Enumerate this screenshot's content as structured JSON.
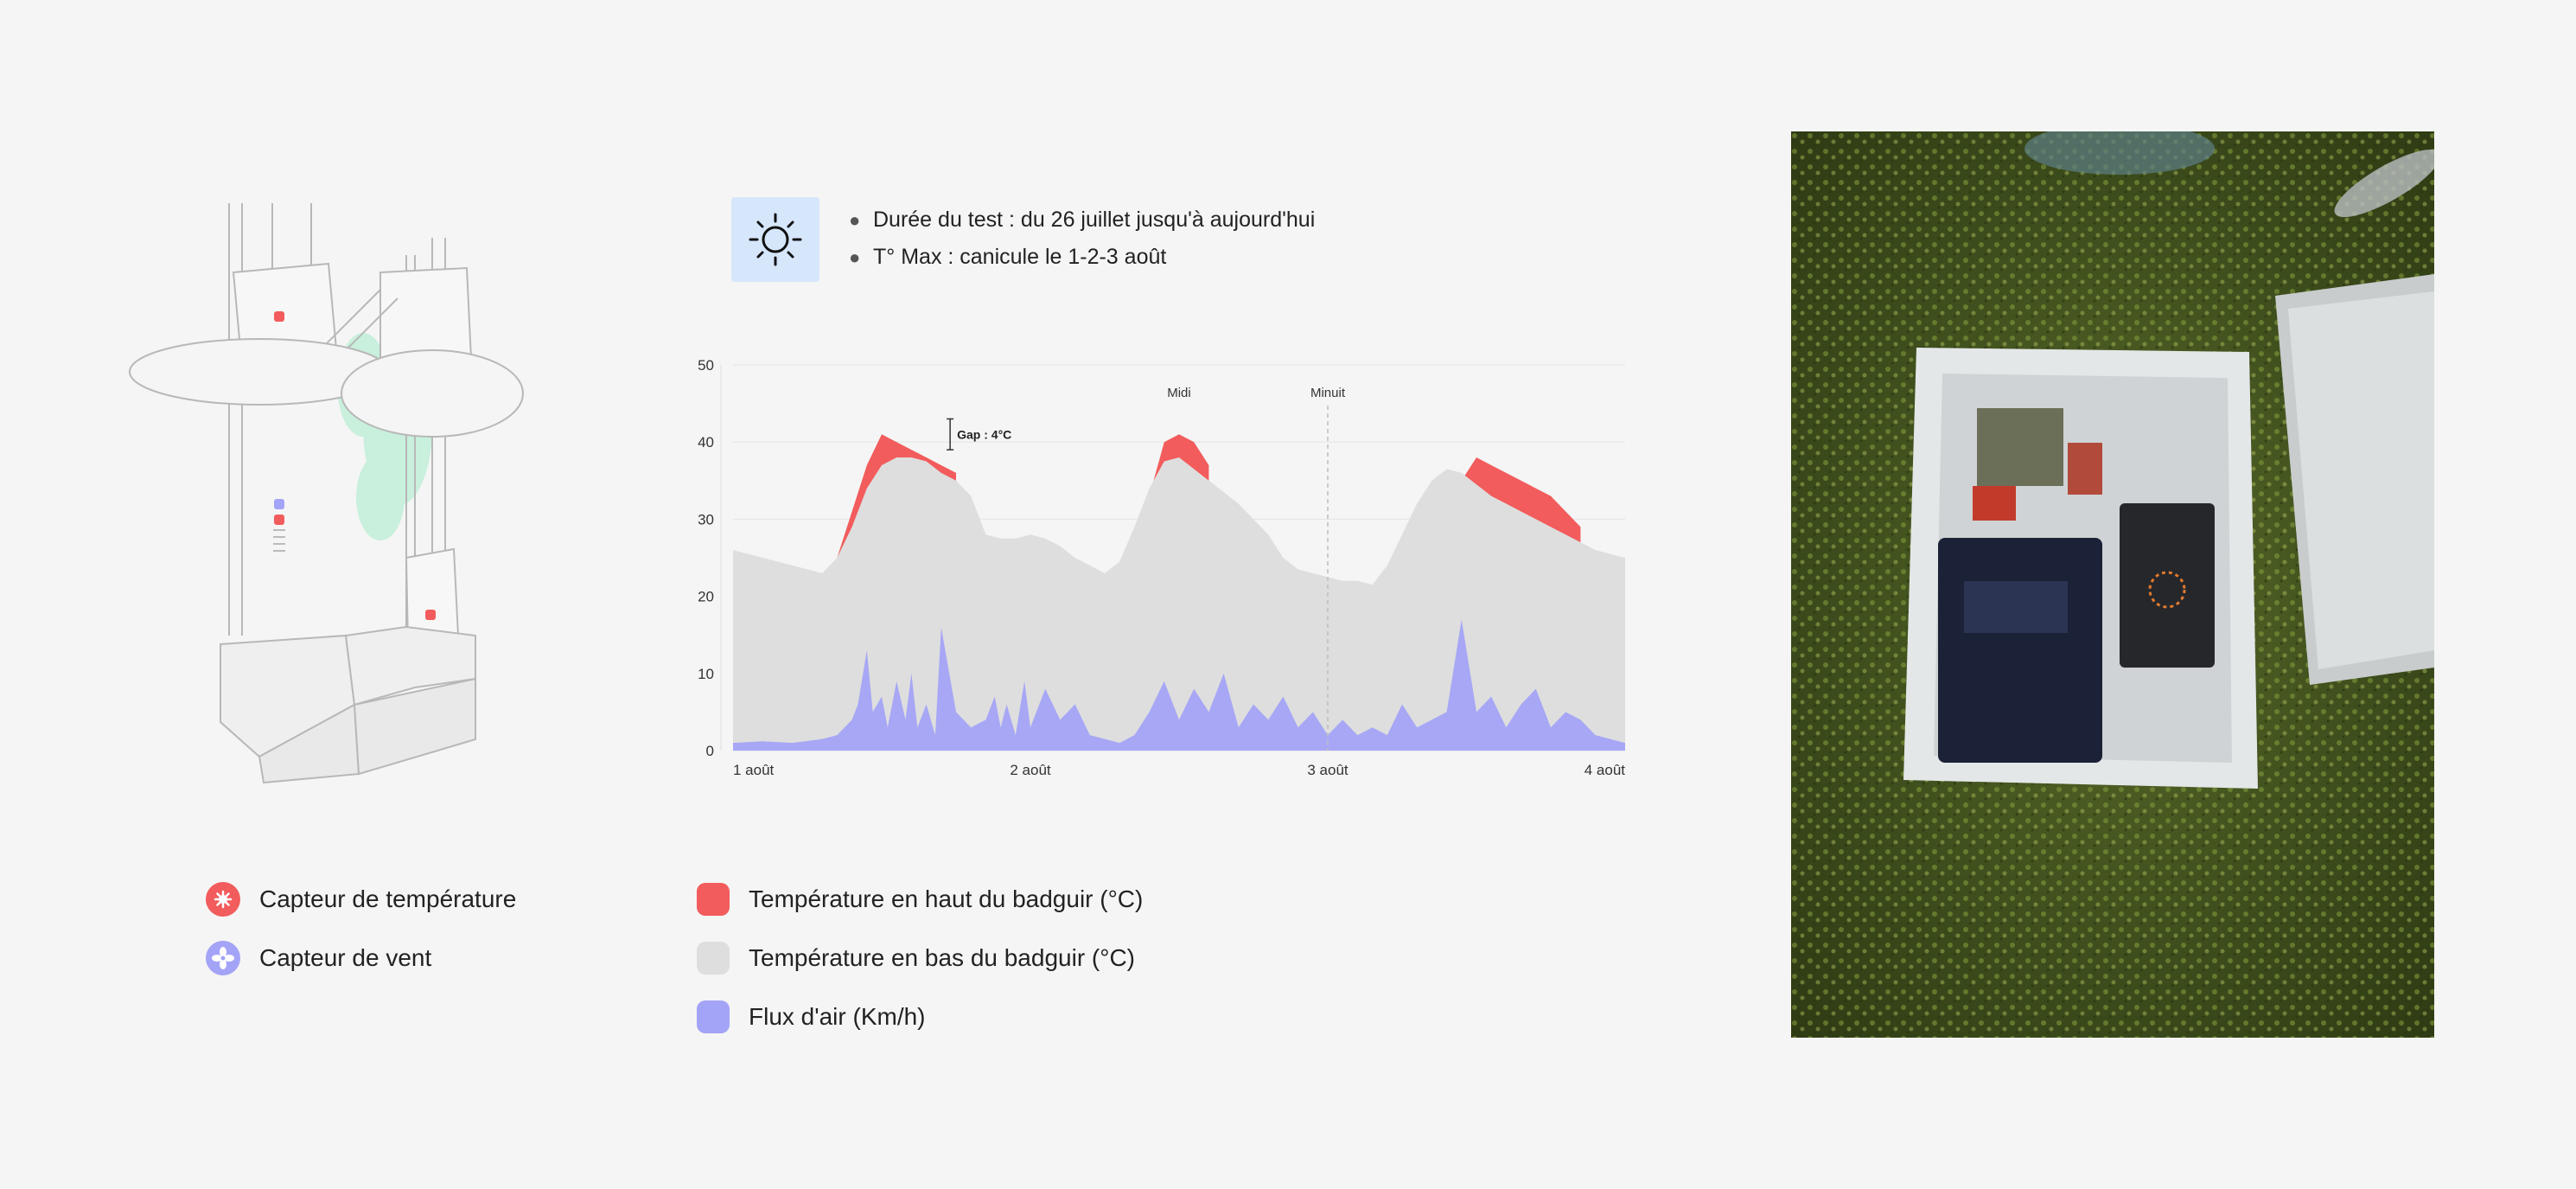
{
  "info": {
    "icon": "sun-icon",
    "bullet_icon": "",
    "lines": [
      "Durée du test : du 26 juillet jusqu'à aujourd'hui",
      "T° Max : canicule le 1-2-3 août"
    ]
  },
  "sensor_legend": [
    {
      "label": "Capteur de température",
      "icon": "thermometer-burst-icon",
      "color": "#f25c5c"
    },
    {
      "label": "Capteur de vent",
      "icon": "fan-icon",
      "color": "#a3a3f7"
    }
  ],
  "series_legend": [
    {
      "label": "Température en haut du badguir (°C)",
      "color": "#f25c5c"
    },
    {
      "label": "Température en bas du badguir (°C)",
      "color": "#dedede"
    },
    {
      "label": "Flux d'air (Km/h)",
      "color": "#a3a3f7"
    }
  ],
  "chart_data": {
    "type": "area",
    "title": "",
    "xlabel": "",
    "ylabel": "",
    "ylim": [
      0,
      50
    ],
    "yticks": [
      0,
      10,
      20,
      30,
      40,
      50
    ],
    "xlim": [
      0,
      3
    ],
    "xticks": [
      {
        "value": 0,
        "label": "1 août"
      },
      {
        "value": 1,
        "label": "2 août"
      },
      {
        "value": 2,
        "label": "3 août"
      },
      {
        "value": 3,
        "label": "4 août"
      }
    ],
    "grid": true,
    "annotations": [
      {
        "label": "Midi",
        "x": 1.5
      },
      {
        "label": "Minuit",
        "x": 2.0,
        "dashed_line": true
      },
      {
        "label": "Gap : 4°C",
        "x": 0.73,
        "y_from": 39,
        "y_to": 43
      }
    ],
    "series": [
      {
        "name": "Température en haut du badguir (°C)",
        "color": "#f25c5c",
        "x": [
          0.35,
          0.4,
          0.45,
          0.5,
          0.55,
          0.6,
          0.65,
          0.7,
          0.75,
          1.35,
          1.4,
          1.45,
          1.5,
          1.55,
          1.6,
          2.35,
          2.4,
          2.45,
          2.5,
          2.55,
          2.6,
          2.65,
          2.7,
          2.75,
          2.8,
          2.85
        ],
        "values": [
          25,
          31,
          37,
          41,
          40,
          39,
          38,
          37,
          36,
          25,
          33,
          40,
          41,
          40,
          37,
          24,
          30,
          35,
          38,
          37,
          36,
          35,
          34,
          33,
          31,
          29
        ]
      },
      {
        "name": "Température en bas du badguir (°C)",
        "color": "#dedede",
        "x": [
          0.0,
          0.05,
          0.1,
          0.15,
          0.2,
          0.25,
          0.3,
          0.35,
          0.4,
          0.45,
          0.5,
          0.55,
          0.6,
          0.65,
          0.7,
          0.75,
          0.8,
          0.85,
          0.9,
          0.95,
          1.0,
          1.05,
          1.1,
          1.15,
          1.2,
          1.25,
          1.3,
          1.35,
          1.4,
          1.45,
          1.5,
          1.55,
          1.6,
          1.65,
          1.7,
          1.75,
          1.8,
          1.85,
          1.9,
          1.95,
          2.0,
          2.05,
          2.1,
          2.15,
          2.2,
          2.25,
          2.3,
          2.35,
          2.4,
          2.45,
          2.5,
          2.55,
          2.6,
          2.65,
          2.7,
          2.75,
          2.8,
          2.85,
          2.9,
          2.95,
          3.0
        ],
        "values": [
          26,
          25.5,
          25,
          24.5,
          24,
          23.5,
          23,
          25,
          29,
          34,
          37,
          38,
          38,
          37.5,
          36,
          35,
          33,
          28,
          27.5,
          27.5,
          28,
          27.5,
          26.5,
          25,
          24,
          23,
          24.5,
          29,
          34,
          37.5,
          38,
          36.5,
          35,
          33.5,
          32,
          30,
          28,
          25,
          23.5,
          23,
          22.5,
          22,
          22,
          21.5,
          24,
          28,
          32,
          35,
          36.5,
          36,
          34.5,
          33,
          32,
          31,
          30,
          29,
          28,
          27,
          26,
          25.5,
          25
        ]
      },
      {
        "name": "Flux d'air (Km/h)",
        "color": "#a3a3f7",
        "x": [
          0.0,
          0.1,
          0.2,
          0.3,
          0.35,
          0.4,
          0.42,
          0.45,
          0.47,
          0.5,
          0.52,
          0.55,
          0.58,
          0.6,
          0.62,
          0.65,
          0.68,
          0.7,
          0.75,
          0.8,
          0.85,
          0.88,
          0.9,
          0.92,
          0.95,
          0.98,
          1.0,
          1.05,
          1.1,
          1.15,
          1.2,
          1.25,
          1.3,
          1.35,
          1.4,
          1.45,
          1.5,
          1.55,
          1.6,
          1.65,
          1.7,
          1.75,
          1.8,
          1.85,
          1.9,
          1.95,
          2.0,
          2.05,
          2.1,
          2.15,
          2.2,
          2.25,
          2.3,
          2.35,
          2.4,
          2.45,
          2.5,
          2.55,
          2.6,
          2.65,
          2.7,
          2.75,
          2.8,
          2.85,
          2.9,
          2.95,
          3.0
        ],
        "values": [
          1,
          1.2,
          1,
          1.5,
          2,
          4,
          6,
          13,
          5,
          7,
          3,
          9,
          4,
          10,
          3,
          6,
          2,
          16,
          5,
          3,
          4,
          7,
          3,
          6,
          2,
          9,
          3,
          8,
          4,
          6,
          2,
          1.5,
          1,
          2,
          5,
          9,
          4,
          8,
          5,
          10,
          3,
          6,
          4,
          7,
          3,
          5,
          2,
          4,
          2,
          3,
          2,
          6,
          3,
          4,
          5,
          17,
          5,
          7,
          3,
          6,
          8,
          3,
          5,
          4,
          2,
          1.5,
          1
        ]
      }
    ]
  }
}
